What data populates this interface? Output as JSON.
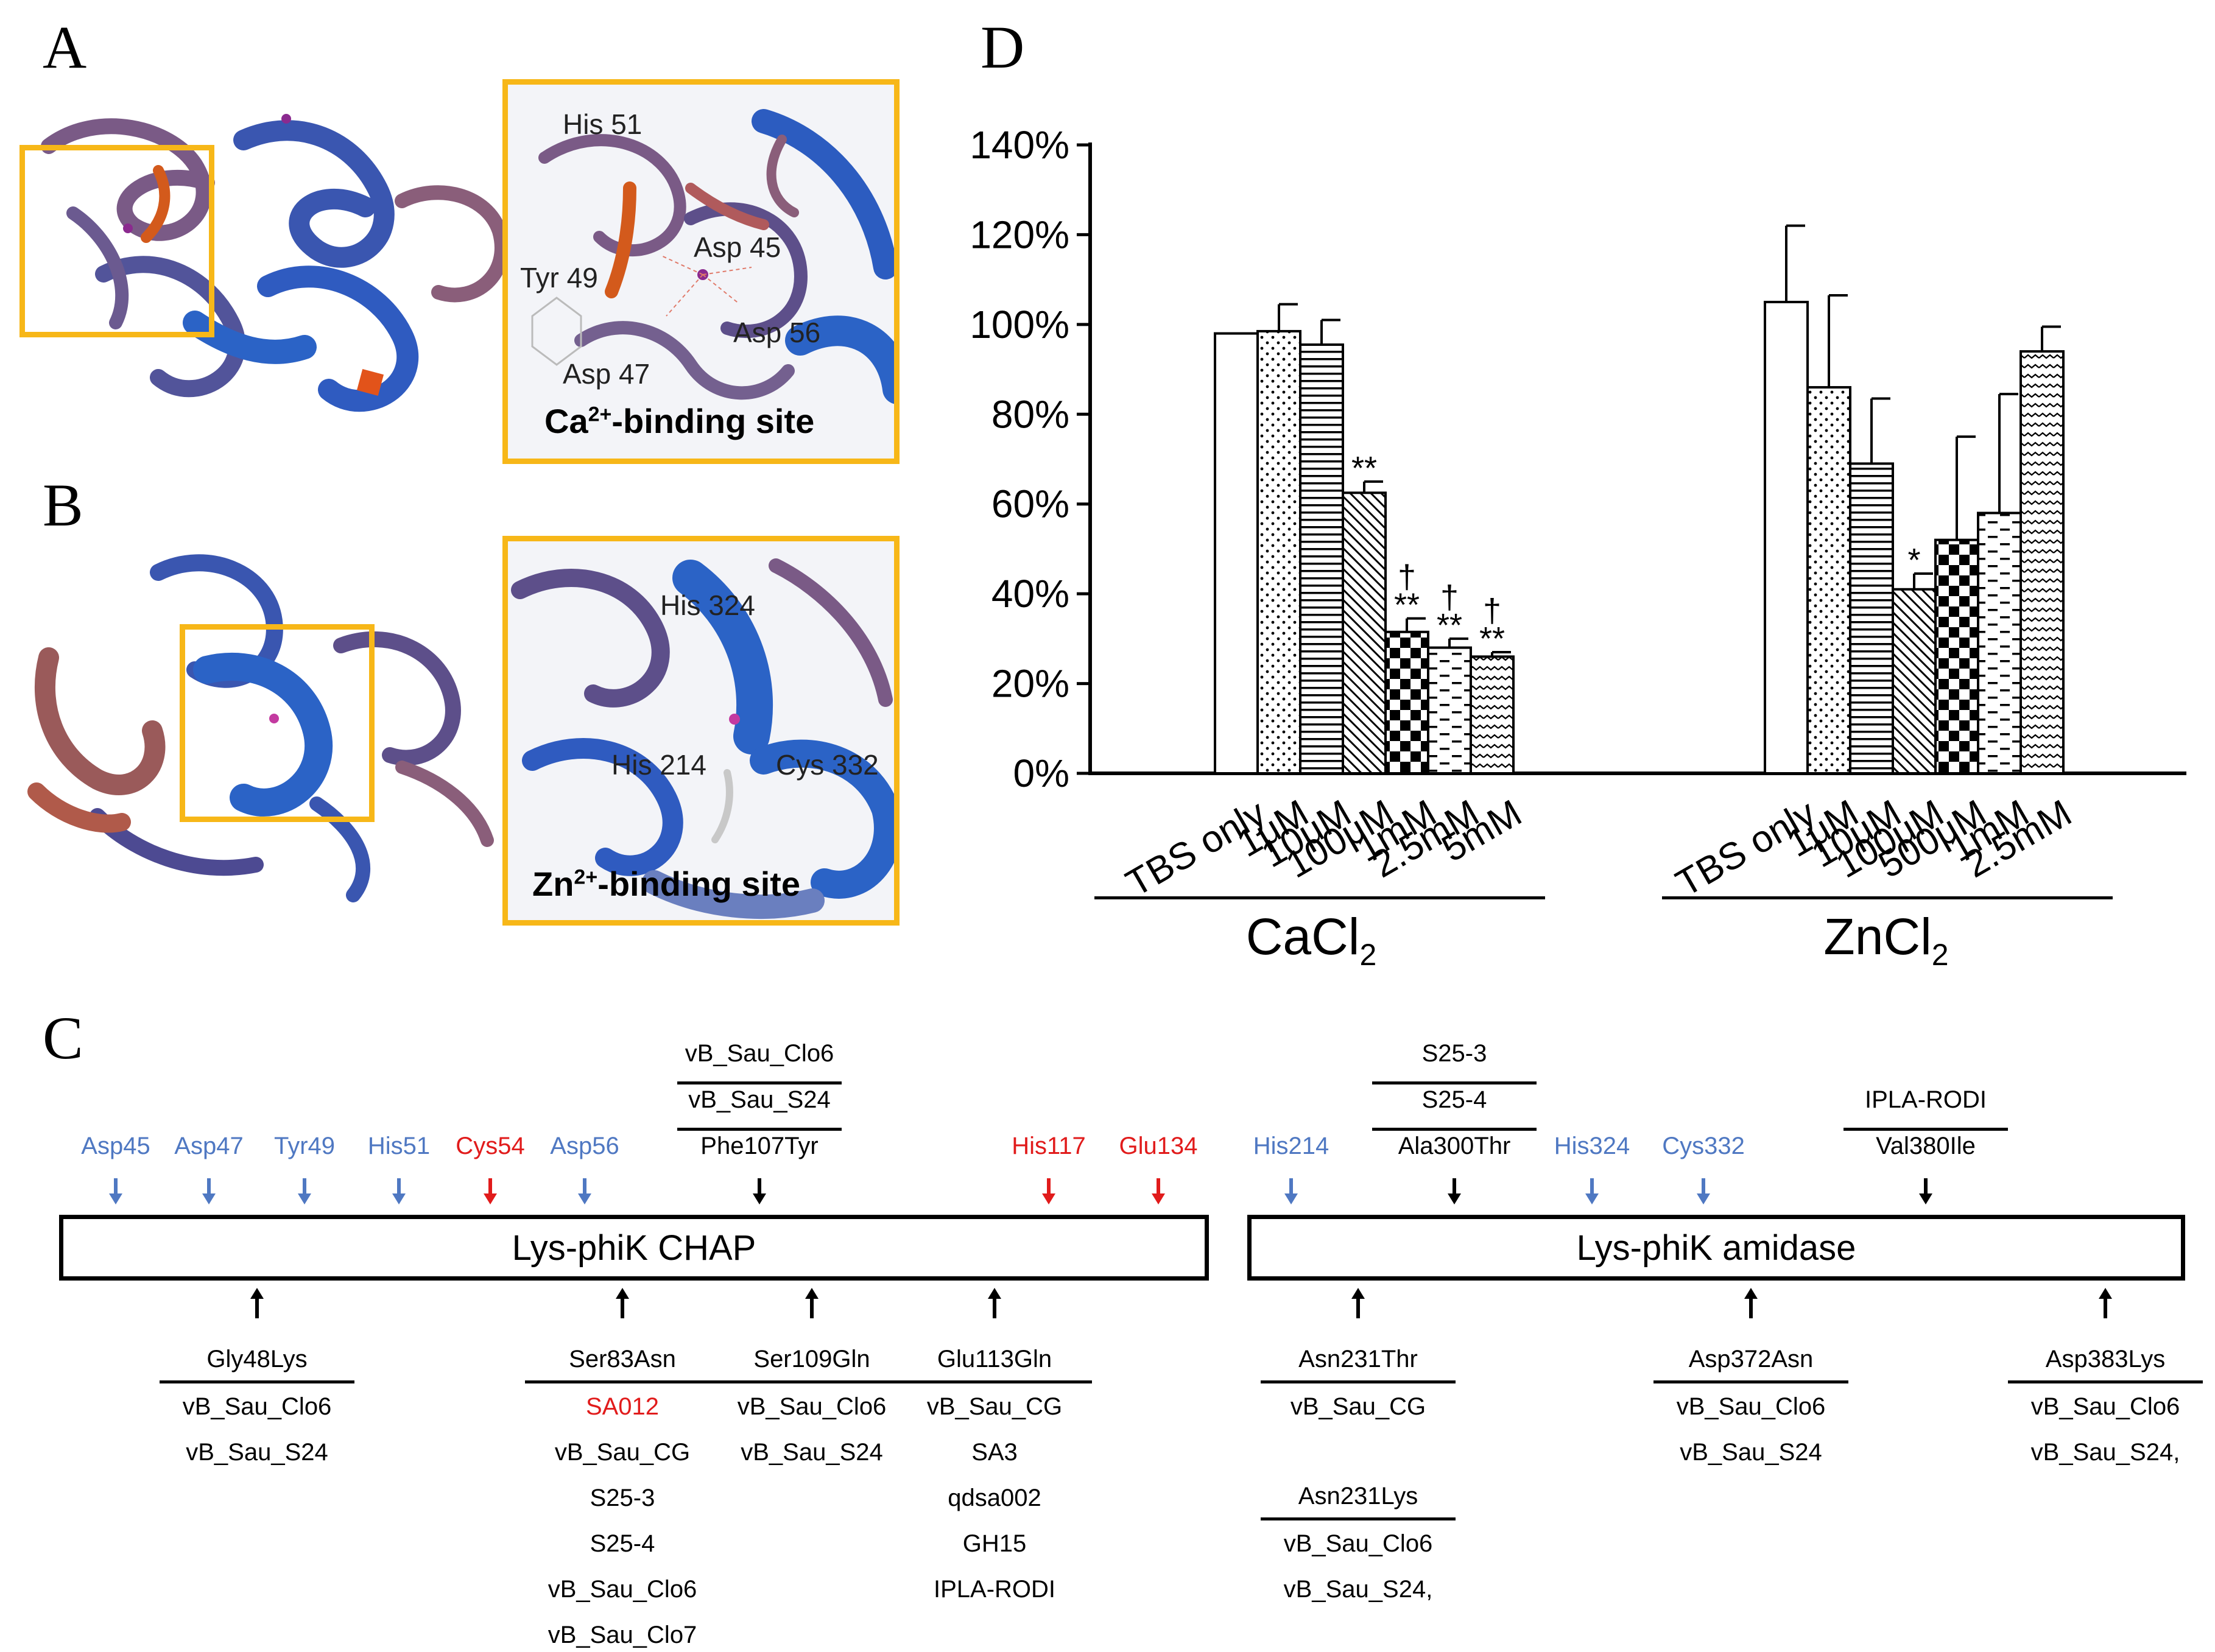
{
  "panels": {
    "a": {
      "letter": "A",
      "residues": [
        "His 51",
        "Asp 45",
        "Tyr 49",
        "Asp 56",
        "Asp 47"
      ],
      "site_label": "-binding site",
      "ion": "Ca",
      "charge": "2+"
    },
    "b": {
      "letter": "B",
      "residues": [
        "His 324",
        "His 214",
        "Cys 332"
      ],
      "site_label": "-binding site",
      "ion": "Zn",
      "charge": "2+"
    },
    "c": {
      "letter": "C",
      "chap_domain": "Lys-phiK CHAP",
      "amidase_domain": "Lys-phiK amidase",
      "top_residues": [
        {
          "text": "Asp45",
          "color": "blue"
        },
        {
          "text": "Asp47",
          "color": "blue"
        },
        {
          "text": "Tyr49",
          "color": "blue"
        },
        {
          "text": "His51",
          "color": "blue"
        },
        {
          "text": "Cys54",
          "color": "red"
        },
        {
          "text": "Asp56",
          "color": "blue"
        },
        {
          "text": "His117",
          "color": "red"
        },
        {
          "text": "Glu134",
          "color": "red"
        },
        {
          "text": "His214",
          "color": "blue"
        },
        {
          "text": "His324",
          "color": "blue"
        },
        {
          "text": "Cys332",
          "color": "blue"
        }
      ],
      "top_mutations": [
        {
          "mutation": "Phe107Tyr",
          "phages": [
            "vB_Sau_Clo6",
            "vB_Sau_S24"
          ]
        },
        {
          "mutation": "Ala300Thr",
          "phages": [
            "S25-3",
            "S25-4"
          ]
        },
        {
          "mutation": "Val380Ile",
          "phages": [
            "IPLA-RODI"
          ]
        }
      ],
      "bottom_mutations": [
        {
          "mutation": "Gly48Lys",
          "phages": [
            "vB_Sau_Clo6",
            "vB_Sau_S24"
          ]
        },
        {
          "mutation": "Ser83Asn",
          "phages": [
            "SA012",
            "vB_Sau_CG",
            "S25-3",
            "S25-4",
            "vB_Sau_Clo6",
            "vB_Sau_Clo7"
          ]
        },
        {
          "mutation": "Ser109Gln",
          "phages": [
            "vB_Sau_Clo6",
            "vB_Sau_S24"
          ]
        },
        {
          "mutation": "Glu113Gln",
          "phages": [
            "vB_Sau_CG",
            "SA3",
            "qdsa002",
            "GH15",
            "IPLA-RODI"
          ]
        },
        {
          "mutation": "Asn231Thr",
          "phages": [
            "vB_Sau_CG"
          ]
        },
        {
          "mutation": "Asn231Lys",
          "phages": [
            "vB_Sau_Clo6",
            "vB_Sau_S24,"
          ]
        },
        {
          "mutation": "Asp372Asn",
          "phages": [
            "vB_Sau_Clo6",
            "vB_Sau_S24"
          ]
        },
        {
          "mutation": "Asp383Lys",
          "phages": [
            "vB_Sau_Clo6",
            "vB_Sau_S24,"
          ]
        }
      ]
    },
    "d": {
      "letter": "D",
      "groups": [
        {
          "ion": "CaCl",
          "subscript": "2"
        },
        {
          "ion": "ZnCl",
          "subscript": "2"
        }
      ]
    }
  },
  "chart_data": {
    "type": "bar",
    "ylim": [
      0,
      140
    ],
    "yticks": [
      "0%",
      "20%",
      "40%",
      "60%",
      "80%",
      "100%",
      "120%",
      "140%"
    ],
    "ytick_values": [
      0,
      20,
      40,
      60,
      80,
      100,
      120,
      140
    ],
    "groups": [
      {
        "name": "CaCl2",
        "categories": [
          "TBS only",
          "1μM",
          "10μM",
          "100μM",
          "1mM",
          "2.5mM",
          "5mM"
        ],
        "values": [
          98,
          98.5,
          95.5,
          62.5,
          31.5,
          28,
          26
        ],
        "errors": [
          0,
          6,
          5.5,
          2.5,
          3,
          2,
          1
        ],
        "sig": [
          "",
          "",
          "",
          "**",
          "**",
          "**",
          "**"
        ],
        "dagger": [
          "",
          "",
          "",
          "",
          "†",
          "†",
          "†"
        ]
      },
      {
        "name": "ZnCl2",
        "categories": [
          "TBS only",
          "1μM",
          "10μM",
          "100μM",
          "500μM",
          "1mM",
          "2.5mM"
        ],
        "values": [
          105,
          86,
          69,
          41,
          52,
          58,
          94
        ],
        "errors": [
          17,
          20.5,
          14.5,
          3.5,
          23,
          26.5,
          5.5
        ],
        "sig": [
          "",
          "",
          "",
          "*",
          "",
          "",
          ""
        ],
        "dagger": [
          "",
          "",
          "",
          "",
          "",
          "",
          ""
        ]
      }
    ],
    "patterns": [
      "white",
      "dots",
      "hlines",
      "diag",
      "checker",
      "dashes",
      "waves"
    ]
  }
}
